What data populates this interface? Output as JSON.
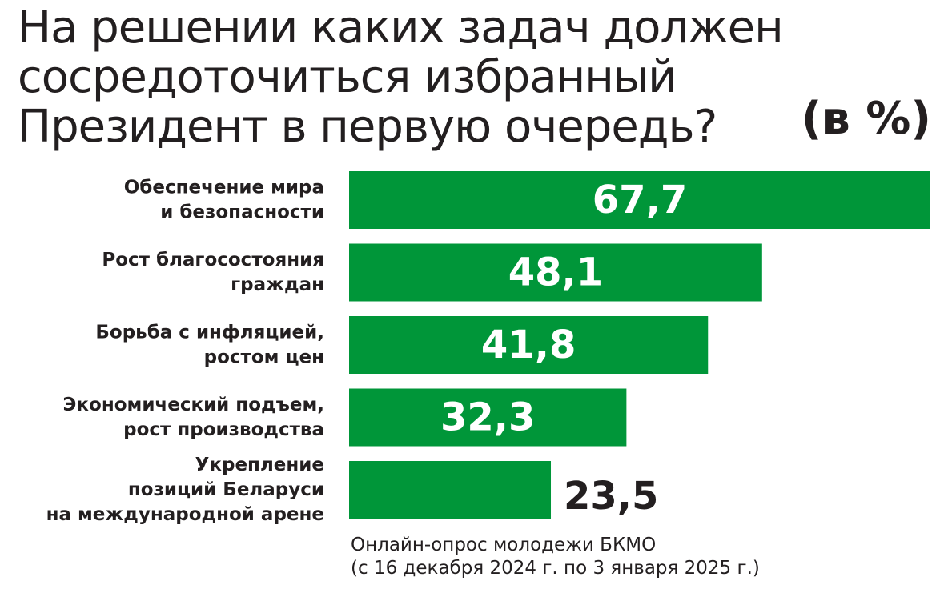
{
  "title": "На решении каких задач должен\nсосредоточиться избранный\nПрезидент в первую очередь?",
  "unit_label": "(в %)",
  "source": {
    "line1": "Онлайн-опрос молодежи БКМО",
    "line2": "(с 16 декабря 2024 г. по 3 января 2025 г.)"
  },
  "colors": {
    "bar": "#009639",
    "text": "#231f20",
    "inside_label": "#ffffff"
  },
  "chart_data": {
    "type": "bar",
    "orientation": "horizontal",
    "title": "На решении каких задач должен сосредоточиться избранный Президент в первую очередь?",
    "unit": "(в %)",
    "categories": [
      [
        "Обеспечение мира",
        "и безопасности"
      ],
      [
        "Рост благосостояния",
        "граждан"
      ],
      [
        "Борьба с инфляцией,",
        "ростом цен"
      ],
      [
        "Экономический подъем,",
        "рост производства"
      ],
      [
        "Укрепление",
        "позиций Беларуси",
        "на международной арене"
      ]
    ],
    "values": [
      "67,7",
      "48,1",
      "41,8",
      "32,3",
      "23,5"
    ],
    "xlim": [
      0,
      67.7
    ],
    "grid": false,
    "legend": "none"
  }
}
